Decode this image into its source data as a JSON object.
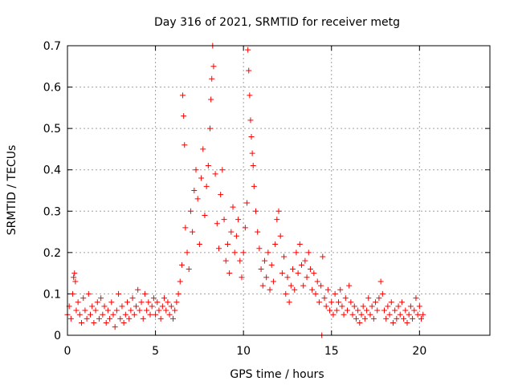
{
  "chart_data": {
    "type": "scatter",
    "title": "Day 316 of 2021, SRMTID for receiver metg",
    "xlabel": "GPS time / hours",
    "ylabel": "SRMTID / TECUs",
    "xlim": [
      0,
      24
    ],
    "ylim": [
      0,
      0.7
    ],
    "x_ticks": [
      0,
      5,
      10,
      15,
      20
    ],
    "y_ticks": [
      0,
      0.1,
      0.2,
      0.3,
      0.4,
      0.5,
      0.6,
      0.7
    ],
    "x_tick_labels": [
      "0",
      "5",
      "10",
      "15",
      "20"
    ],
    "y_tick_labels": [
      "0",
      "0.1",
      "0.2",
      "0.3",
      "0.4",
      "0.5",
      "0.6",
      "0.7"
    ],
    "grid": true,
    "marker": "+",
    "color": "#ff0000",
    "series": [
      {
        "name": "SRMTID",
        "points": [
          [
            0.0,
            0.05
          ],
          [
            0.1,
            0.07
          ],
          [
            0.2,
            0.04
          ],
          [
            0.3,
            0.1
          ],
          [
            0.35,
            0.14
          ],
          [
            0.4,
            0.15
          ],
          [
            0.45,
            0.13
          ],
          [
            0.5,
            0.06
          ],
          [
            0.6,
            0.08
          ],
          [
            0.7,
            0.05
          ],
          [
            0.8,
            0.03
          ],
          [
            0.9,
            0.09
          ],
          [
            1.0,
            0.06
          ],
          [
            1.1,
            0.04
          ],
          [
            1.2,
            0.1
          ],
          [
            1.3,
            0.05
          ],
          [
            1.4,
            0.07
          ],
          [
            1.5,
            0.03
          ],
          [
            1.6,
            0.06
          ],
          [
            1.7,
            0.08
          ],
          [
            1.8,
            0.04
          ],
          [
            1.9,
            0.09
          ],
          [
            2.0,
            0.05
          ],
          [
            2.1,
            0.07
          ],
          [
            2.2,
            0.03
          ],
          [
            2.3,
            0.06
          ],
          [
            2.4,
            0.04
          ],
          [
            2.5,
            0.08
          ],
          [
            2.6,
            0.05
          ],
          [
            2.7,
            0.02
          ],
          [
            2.8,
            0.06
          ],
          [
            2.9,
            0.1
          ],
          [
            3.0,
            0.04
          ],
          [
            3.1,
            0.07
          ],
          [
            3.2,
            0.03
          ],
          [
            3.3,
            0.05
          ],
          [
            3.4,
            0.08
          ],
          [
            3.5,
            0.04
          ],
          [
            3.6,
            0.06
          ],
          [
            3.7,
            0.09
          ],
          [
            3.8,
            0.05
          ],
          [
            3.9,
            0.07
          ],
          [
            4.0,
            0.11
          ],
          [
            4.1,
            0.06
          ],
          [
            4.2,
            0.08
          ],
          [
            4.3,
            0.04
          ],
          [
            4.4,
            0.1
          ],
          [
            4.5,
            0.06
          ],
          [
            4.6,
            0.08
          ],
          [
            4.7,
            0.05
          ],
          [
            4.8,
            0.07
          ],
          [
            4.9,
            0.09
          ],
          [
            5.0,
            0.05
          ],
          [
            5.1,
            0.08
          ],
          [
            5.2,
            0.06
          ],
          [
            5.3,
            0.04
          ],
          [
            5.4,
            0.07
          ],
          [
            5.5,
            0.09
          ],
          [
            5.6,
            0.06
          ],
          [
            5.7,
            0.08
          ],
          [
            5.8,
            0.05
          ],
          [
            5.9,
            0.07
          ],
          [
            6.0,
            0.04
          ],
          [
            6.1,
            0.06
          ],
          [
            6.2,
            0.08
          ],
          [
            6.3,
            0.1
          ],
          [
            6.4,
            0.13
          ],
          [
            6.5,
            0.17
          ],
          [
            6.55,
            0.58
          ],
          [
            6.6,
            0.53
          ],
          [
            6.65,
            0.46
          ],
          [
            6.7,
            0.26
          ],
          [
            6.8,
            0.2
          ],
          [
            6.9,
            0.16
          ],
          [
            7.0,
            0.3
          ],
          [
            7.1,
            0.25
          ],
          [
            7.2,
            0.35
          ],
          [
            7.3,
            0.4
          ],
          [
            7.4,
            0.33
          ],
          [
            7.5,
            0.22
          ],
          [
            7.6,
            0.38
          ],
          [
            7.7,
            0.45
          ],
          [
            7.8,
            0.29
          ],
          [
            7.9,
            0.36
          ],
          [
            8.0,
            0.41
          ],
          [
            8.1,
            0.5
          ],
          [
            8.15,
            0.57
          ],
          [
            8.2,
            0.62
          ],
          [
            8.25,
            0.7
          ],
          [
            8.3,
            0.65
          ],
          [
            8.4,
            0.39
          ],
          [
            8.5,
            0.27
          ],
          [
            8.6,
            0.21
          ],
          [
            8.7,
            0.34
          ],
          [
            8.8,
            0.4
          ],
          [
            8.9,
            0.28
          ],
          [
            9.0,
            0.18
          ],
          [
            9.1,
            0.22
          ],
          [
            9.2,
            0.15
          ],
          [
            9.3,
            0.25
          ],
          [
            9.4,
            0.31
          ],
          [
            9.5,
            0.2
          ],
          [
            9.6,
            0.24
          ],
          [
            9.7,
            0.28
          ],
          [
            9.8,
            0.18
          ],
          [
            9.9,
            0.14
          ],
          [
            10.0,
            0.2
          ],
          [
            10.1,
            0.26
          ],
          [
            10.2,
            0.32
          ],
          [
            10.25,
            0.69
          ],
          [
            10.3,
            0.64
          ],
          [
            10.35,
            0.58
          ],
          [
            10.4,
            0.52
          ],
          [
            10.45,
            0.48
          ],
          [
            10.5,
            0.44
          ],
          [
            10.55,
            0.41
          ],
          [
            10.6,
            0.36
          ],
          [
            10.7,
            0.3
          ],
          [
            10.8,
            0.25
          ],
          [
            10.9,
            0.21
          ],
          [
            11.0,
            0.16
          ],
          [
            11.1,
            0.12
          ],
          [
            11.2,
            0.18
          ],
          [
            11.3,
            0.14
          ],
          [
            11.4,
            0.2
          ],
          [
            11.5,
            0.11
          ],
          [
            11.6,
            0.17
          ],
          [
            11.7,
            0.13
          ],
          [
            11.8,
            0.22
          ],
          [
            11.9,
            0.28
          ],
          [
            12.0,
            0.3
          ],
          [
            12.1,
            0.24
          ],
          [
            12.2,
            0.15
          ],
          [
            12.3,
            0.19
          ],
          [
            12.4,
            0.1
          ],
          [
            12.5,
            0.14
          ],
          [
            12.6,
            0.08
          ],
          [
            12.7,
            0.12
          ],
          [
            12.8,
            0.16
          ],
          [
            12.9,
            0.11
          ],
          [
            13.0,
            0.2
          ],
          [
            13.1,
            0.15
          ],
          [
            13.2,
            0.22
          ],
          [
            13.3,
            0.17
          ],
          [
            13.4,
            0.12
          ],
          [
            13.5,
            0.18
          ],
          [
            13.6,
            0.14
          ],
          [
            13.7,
            0.2
          ],
          [
            13.8,
            0.16
          ],
          [
            13.9,
            0.11
          ],
          [
            14.0,
            0.15
          ],
          [
            14.1,
            0.1
          ],
          [
            14.2,
            0.13
          ],
          [
            14.3,
            0.08
          ],
          [
            14.4,
            0.12
          ],
          [
            14.45,
            0.0
          ],
          [
            14.5,
            0.19
          ],
          [
            14.6,
            0.09
          ],
          [
            14.7,
            0.07
          ],
          [
            14.8,
            0.11
          ],
          [
            14.9,
            0.06
          ],
          [
            15.0,
            0.08
          ],
          [
            15.1,
            0.05
          ],
          [
            15.2,
            0.1
          ],
          [
            15.3,
            0.06
          ],
          [
            15.4,
            0.08
          ],
          [
            15.5,
            0.11
          ],
          [
            15.6,
            0.07
          ],
          [
            15.7,
            0.05
          ],
          [
            15.8,
            0.09
          ],
          [
            15.9,
            0.06
          ],
          [
            16.0,
            0.12
          ],
          [
            16.1,
            0.08
          ],
          [
            16.2,
            0.05
          ],
          [
            16.3,
            0.07
          ],
          [
            16.4,
            0.04
          ],
          [
            16.5,
            0.06
          ],
          [
            16.6,
            0.03
          ],
          [
            16.7,
            0.05
          ],
          [
            16.8,
            0.07
          ],
          [
            16.9,
            0.04
          ],
          [
            17.0,
            0.06
          ],
          [
            17.1,
            0.09
          ],
          [
            17.2,
            0.05
          ],
          [
            17.3,
            0.07
          ],
          [
            17.4,
            0.04
          ],
          [
            17.5,
            0.08
          ],
          [
            17.6,
            0.06
          ],
          [
            17.7,
            0.09
          ],
          [
            17.8,
            0.13
          ],
          [
            17.9,
            0.1
          ],
          [
            18.0,
            0.06
          ],
          [
            18.1,
            0.04
          ],
          [
            18.2,
            0.07
          ],
          [
            18.3,
            0.05
          ],
          [
            18.4,
            0.08
          ],
          [
            18.5,
            0.03
          ],
          [
            18.6,
            0.06
          ],
          [
            18.7,
            0.04
          ],
          [
            18.8,
            0.07
          ],
          [
            18.9,
            0.05
          ],
          [
            19.0,
            0.08
          ],
          [
            19.1,
            0.04
          ],
          [
            19.2,
            0.06
          ],
          [
            19.3,
            0.03
          ],
          [
            19.4,
            0.05
          ],
          [
            19.5,
            0.07
          ],
          [
            19.6,
            0.04
          ],
          [
            19.7,
            0.06
          ],
          [
            19.8,
            0.09
          ],
          [
            19.9,
            0.05
          ],
          [
            20.0,
            0.07
          ],
          [
            20.1,
            0.04
          ],
          [
            20.2,
            0.05
          ]
        ]
      }
    ]
  }
}
